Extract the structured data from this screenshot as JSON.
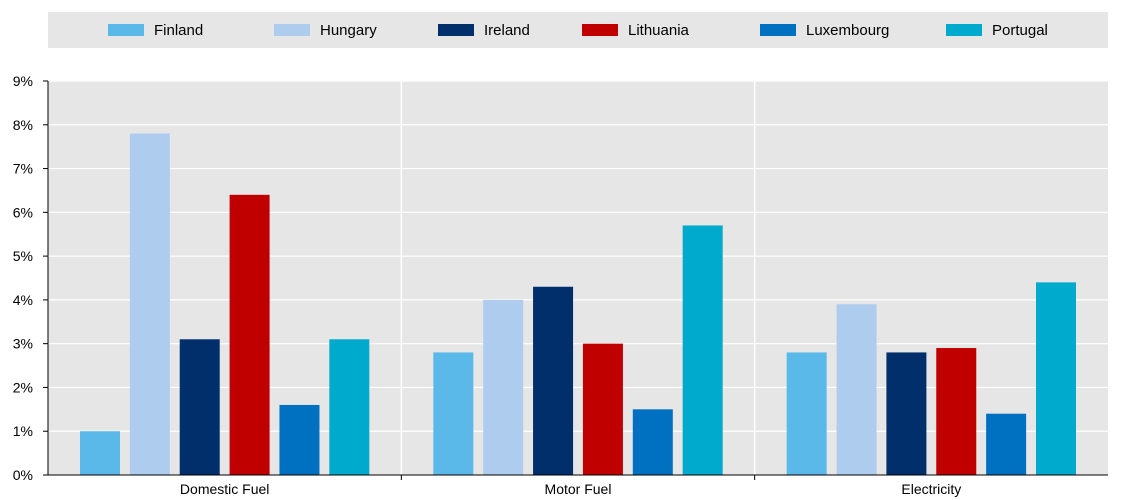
{
  "chart_data": {
    "type": "bar",
    "categories": [
      "Domestic Fuel",
      "Motor Fuel",
      "Electricity"
    ],
    "series": [
      {
        "name": "Finland",
        "color": "#5ab9e8",
        "values": [
          1.0,
          2.8,
          2.8
        ]
      },
      {
        "name": "Hungary",
        "color": "#aecdee",
        "values": [
          7.8,
          4.0,
          3.9
        ]
      },
      {
        "name": "Ireland",
        "color": "#002f6c",
        "values": [
          3.1,
          4.3,
          2.8
        ]
      },
      {
        "name": "Lithuania",
        "color": "#c00000",
        "values": [
          6.4,
          3.0,
          2.9
        ]
      },
      {
        "name": "Luxembourg",
        "color": "#0070c0",
        "values": [
          1.6,
          1.5,
          1.4
        ]
      },
      {
        "name": "Portugal",
        "color": "#00aacc",
        "values": [
          3.1,
          5.7,
          4.4
        ]
      }
    ],
    "yticks": [
      "0%",
      "1%",
      "2%",
      "3%",
      "4%",
      "5%",
      "6%",
      "7%",
      "8%",
      "9%"
    ],
    "ylim": [
      0,
      9
    ],
    "grid": true,
    "legend_position": "top"
  }
}
